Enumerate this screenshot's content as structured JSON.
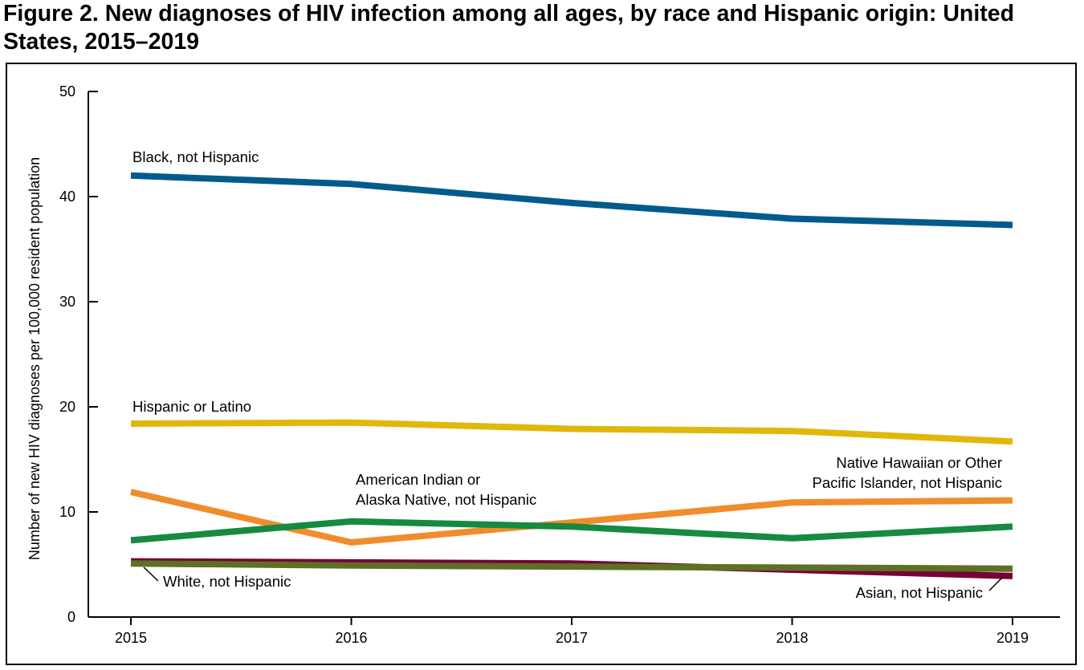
{
  "chart_data": {
    "type": "line",
    "title": "Figure 2. New diagnoses of HIV infection among all ages, by race and Hispanic origin: United States, 2015–2019",
    "xlabel": "",
    "ylabel": "Number of new HIV diagnoses per 100,000 resident population",
    "x": [
      "2015",
      "2016",
      "2017",
      "2018",
      "2019"
    ],
    "ylim": [
      0,
      50
    ],
    "yticks": [
      "0",
      "10",
      "20",
      "30",
      "40",
      "50"
    ],
    "grid": false,
    "series": [
      {
        "key": "black",
        "name": "Black, not Hispanic",
        "color": "#035b8b",
        "values": [
          42.0,
          41.2,
          39.4,
          37.9,
          37.3
        ]
      },
      {
        "key": "hispanic",
        "name": "Hispanic or Latino",
        "color": "#dfb80d",
        "values": [
          18.4,
          18.5,
          17.9,
          17.7,
          16.7
        ]
      },
      {
        "key": "nhopi",
        "name": "Native Hawaiian or Other Pacific Islander, not Hispanic",
        "color": "#ef8d2c",
        "values": [
          11.9,
          7.1,
          9.0,
          10.9,
          11.1
        ]
      },
      {
        "key": "aian",
        "name": "American Indian or Alaska Native, not Hispanic",
        "color": "#168a40",
        "values": [
          7.3,
          9.1,
          8.6,
          7.5,
          8.6
        ]
      },
      {
        "key": "asian",
        "name": "Asian, not Hispanic",
        "color": "#770036",
        "values": [
          5.3,
          5.2,
          5.1,
          4.5,
          3.9
        ]
      },
      {
        "key": "white",
        "name": "White, not Hispanic",
        "color": "#5d7025",
        "values": [
          5.1,
          4.9,
          4.8,
          4.7,
          4.6
        ]
      }
    ],
    "annotations": [
      {
        "series": "black",
        "lines": [
          "Black, not Hispanic"
        ]
      },
      {
        "series": "hispanic",
        "lines": [
          "Hispanic or Latino"
        ]
      },
      {
        "series": "aian",
        "lines": [
          "American Indian or",
          "Alaska Native, not Hispanic"
        ]
      },
      {
        "series": "nhopi",
        "lines": [
          "Native Hawaiian or Other",
          "Pacific Islander, not Hispanic"
        ]
      },
      {
        "series": "white",
        "lines": [
          "White, not Hispanic"
        ]
      },
      {
        "series": "asian",
        "lines": [
          "Asian, not Hispanic"
        ]
      }
    ]
  }
}
